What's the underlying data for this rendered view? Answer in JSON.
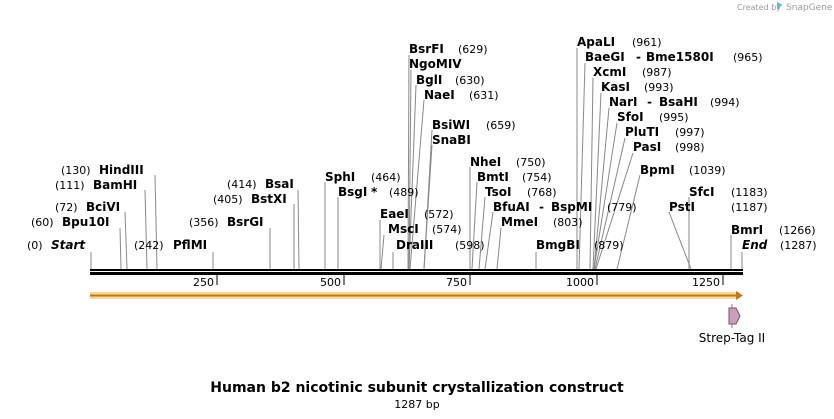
{
  "credit": {
    "prefix": "Created by",
    "brand": "SnapGene"
  },
  "title": "Human b2 nicotinic subunit crystallization construct",
  "length_label": "1287 bp",
  "feature": {
    "name": "Strep-Tag II"
  },
  "ticks": [
    "250",
    "500",
    "750",
    "1000",
    "1250"
  ],
  "ends": {
    "start": "Start",
    "start_pos": "(0)",
    "end": "End",
    "end_pos": "(1287)"
  },
  "sites": [
    {
      "name": "Bpu10I",
      "pos": "(60)"
    },
    {
      "name": "BciVI",
      "pos": "(72)"
    },
    {
      "name": "BamHI",
      "pos": "(111)"
    },
    {
      "name": "HindIII",
      "pos": "(130)"
    },
    {
      "name": "PflMI",
      "pos": "(242)"
    },
    {
      "name": "BsrGI",
      "pos": "(356)"
    },
    {
      "name": "BstXI",
      "pos": "(405)"
    },
    {
      "name": "BsaI",
      "pos": "(414)"
    },
    {
      "name": "SphI",
      "pos": "(464)"
    },
    {
      "name": "BsgI",
      "pos": "(489)",
      "star": "*"
    },
    {
      "name": "EaeI",
      "pos": "(572)"
    },
    {
      "name": "MscI",
      "pos": "(574)"
    },
    {
      "name": "DraIII",
      "pos": "(598)"
    },
    {
      "name": "BsrFI",
      "pos": "(629)"
    },
    {
      "name": "NgoMIV",
      "pos": ""
    },
    {
      "name": "BglI",
      "pos": "(630)"
    },
    {
      "name": "NaeI",
      "pos": "(631)"
    },
    {
      "name": "BsiWI",
      "pos": "(659)"
    },
    {
      "name": "SnaBI",
      "pos": ""
    },
    {
      "name": "NheI",
      "pos": "(750)"
    },
    {
      "name": "BmtI",
      "pos": "(754)"
    },
    {
      "name": "TsoI",
      "pos": "(768)"
    },
    {
      "name": "BfuAI",
      "pos": "(779)",
      "dash": "-",
      "name2": "BspMI"
    },
    {
      "name": "MmeI",
      "pos": "(803)"
    },
    {
      "name": "BmgBI",
      "pos": "(879)"
    },
    {
      "name": "ApaLI",
      "pos": "(961)"
    },
    {
      "name": "BaeGI",
      "pos": "(965)",
      "dash": "-",
      "name2": "Bme1580I"
    },
    {
      "name": "XcmI",
      "pos": "(987)"
    },
    {
      "name": "KasI",
      "pos": "(993)"
    },
    {
      "name": "NarI",
      "pos": "(994)",
      "dash": "-",
      "name2": "BsaHI"
    },
    {
      "name": "SfoI",
      "pos": "(995)"
    },
    {
      "name": "PluTI",
      "pos": "(997)"
    },
    {
      "name": "PasI",
      "pos": "(998)"
    },
    {
      "name": "BpmI",
      "pos": "(1039)"
    },
    {
      "name": "SfcI",
      "pos": "(1183)"
    },
    {
      "name": "PstI",
      "pos": "(1187)"
    },
    {
      "name": "BmrI",
      "pos": "(1266)"
    }
  ]
}
